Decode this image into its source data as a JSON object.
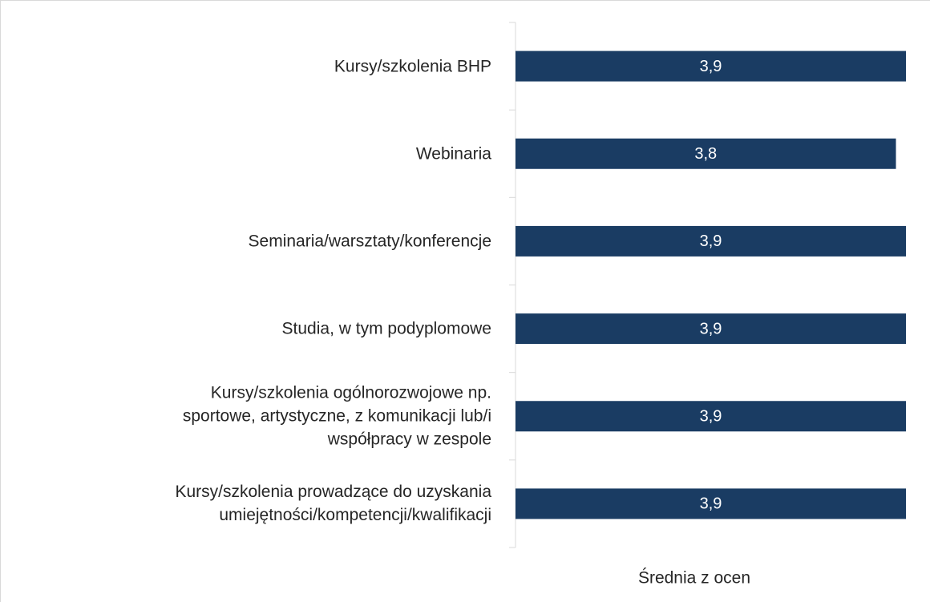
{
  "chart_data": {
    "type": "bar",
    "orientation": "horizontal",
    "categories": [
      "Kursy/szkolenia BHP",
      "Webinaria",
      "Seminaria/warsztaty/konferencje",
      "Studia, w tym podyplomowe",
      "Kursy/szkolenia ogólnorozwojowe np.\nsportowe, artystyczne, z komunikacji lub/i\nwspółpracy w zespole",
      "Kursy/szkolenia prowadzące do uzyskania\numiejętności/kompetencji/kwalifikacji"
    ],
    "values": [
      3.9,
      3.8,
      3.9,
      3.9,
      3.9,
      3.9
    ],
    "value_labels": [
      "3,9",
      "3,8",
      "3,9",
      "3,9",
      "3,9",
      "3,9"
    ],
    "color": "#1a3c63",
    "xlim": [
      0,
      3.9
    ],
    "x_label": "Średnia z ocen"
  }
}
